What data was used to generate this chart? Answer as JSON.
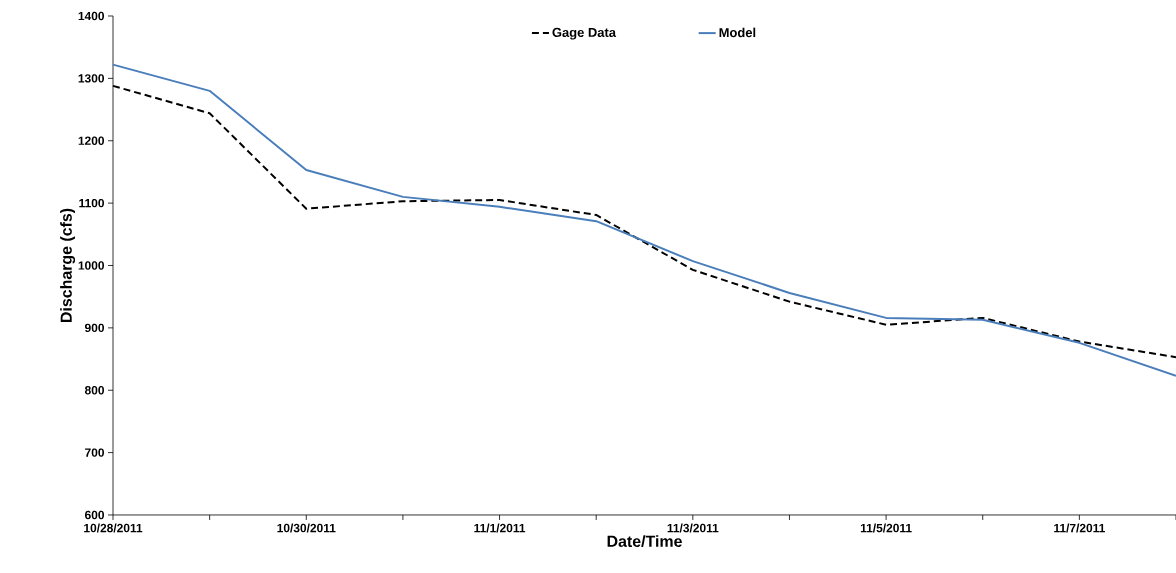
{
  "chart_data": {
    "type": "line",
    "xlabel": "Date/Time",
    "ylabel": "Discharge (cfs)",
    "x": [
      "2011-10-28",
      "2011-10-29",
      "2011-10-30",
      "2011-10-31",
      "2011-11-01",
      "2011-11-02",
      "2011-11-03",
      "2011-11-04",
      "2011-11-05",
      "2011-11-06",
      "2011-11-07",
      "2011-11-08"
    ],
    "series": [
      {
        "name": "Gage Data",
        "color": "#000000",
        "line_style": "dashed",
        "values": [
          1288,
          1244,
          1091,
          1103,
          1105,
          1081,
          993,
          942,
          905,
          916,
          878,
          853
        ]
      },
      {
        "name": "Model",
        "color": "#4a7ebb",
        "line_style": "solid",
        "values": [
          1322,
          1280,
          1153,
          1110,
          1094,
          1071,
          1007,
          956,
          916,
          913,
          876,
          823
        ]
      }
    ],
    "xlim": [
      "2011-10-28",
      "2011-11-08"
    ],
    "xticks": [
      {
        "value": "2011-10-28",
        "label": "10/28/2011"
      },
      {
        "value": "2011-10-29",
        "label": null
      },
      {
        "value": "2011-10-30",
        "label": "10/30/2011"
      },
      {
        "value": "2011-10-31",
        "label": null
      },
      {
        "value": "2011-11-01",
        "label": "11/1/2011"
      },
      {
        "value": "2011-11-02",
        "label": null
      },
      {
        "value": "2011-11-03",
        "label": "11/3/2011"
      },
      {
        "value": "2011-11-04",
        "label": null
      },
      {
        "value": "2011-11-05",
        "label": "11/5/2011"
      },
      {
        "value": "2011-11-06",
        "label": null
      },
      {
        "value": "2011-11-07",
        "label": "11/7/2011"
      },
      {
        "value": "2011-11-08",
        "label": null
      }
    ],
    "ylim": [
      600,
      1400
    ],
    "yticks": [
      600,
      700,
      800,
      900,
      1000,
      1100,
      1200,
      1300,
      1400
    ],
    "grid": false,
    "legend": "top",
    "marker": "none"
  }
}
